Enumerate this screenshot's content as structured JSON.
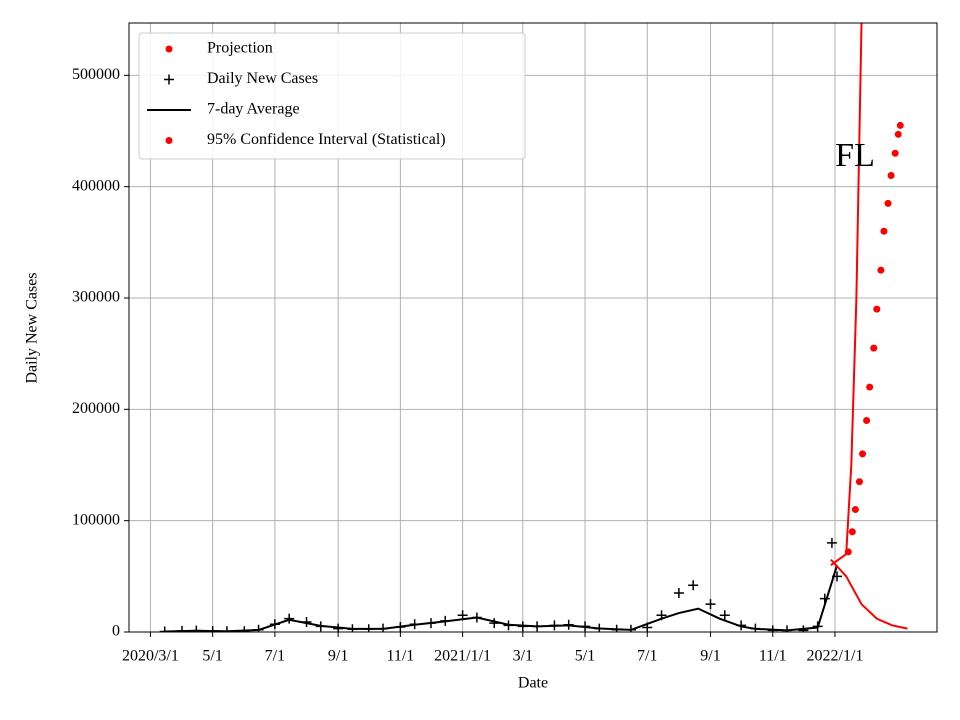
{
  "chart_data": {
    "type": "line",
    "x_label": "Date",
    "y_label": "Daily New Cases",
    "annotation": "FL",
    "xlim": [
      "2020-02-09",
      "2022-04-11"
    ],
    "ylim": [
      0,
      547000
    ],
    "xticks": [
      {
        "value": "2020-03-01",
        "label": "2020/3/1"
      },
      {
        "value": "2020-05-01",
        "label": "5/1"
      },
      {
        "value": "2020-07-01",
        "label": "7/1"
      },
      {
        "value": "2020-09-01",
        "label": "9/1"
      },
      {
        "value": "2020-11-01",
        "label": "11/1"
      },
      {
        "value": "2021-01-01",
        "label": "2021/1/1"
      },
      {
        "value": "2021-03-01",
        "label": "3/1"
      },
      {
        "value": "2021-05-01",
        "label": "5/1"
      },
      {
        "value": "2021-07-01",
        "label": "7/1"
      },
      {
        "value": "2021-09-01",
        "label": "9/1"
      },
      {
        "value": "2021-11-01",
        "label": "11/1"
      },
      {
        "value": "2022-01-01",
        "label": "2022/1/1"
      }
    ],
    "yticks": [
      0,
      100000,
      200000,
      300000,
      400000,
      500000
    ],
    "grid": true,
    "legend": "upper left",
    "series": [
      {
        "name": "Projection",
        "color": "#ff0000",
        "style": "line",
        "legend_marker": "dot",
        "x": [
          "2021-12-28",
          "2022-01-12",
          "2022-01-17",
          "2022-01-22",
          "2022-01-27"
        ],
        "values": [
          60000,
          70000,
          150000,
          300000,
          547000
        ]
      },
      {
        "name": "Daily New Cases",
        "color": "#000000",
        "style": "plus",
        "legend_marker": "plus",
        "x": [
          "2020-03-15",
          "2020-04-01",
          "2020-04-15",
          "2020-05-01",
          "2020-05-15",
          "2020-06-01",
          "2020-06-15",
          "2020-07-01",
          "2020-07-15",
          "2020-08-01",
          "2020-08-15",
          "2020-09-01",
          "2020-09-15",
          "2020-10-01",
          "2020-10-15",
          "2020-11-01",
          "2020-11-15",
          "2020-12-01",
          "2020-12-15",
          "2021-01-01",
          "2021-01-15",
          "2021-02-01",
          "2021-02-15",
          "2021-03-01",
          "2021-03-15",
          "2021-04-01",
          "2021-04-15",
          "2021-05-01",
          "2021-05-15",
          "2021-06-01",
          "2021-06-15",
          "2021-07-01",
          "2021-07-15",
          "2021-08-01",
          "2021-08-15",
          "2021-09-01",
          "2021-09-15",
          "2021-10-01",
          "2021-10-15",
          "2021-11-01",
          "2021-11-15",
          "2021-12-01",
          "2021-12-15",
          "2021-12-22",
          "2021-12-29",
          "2022-01-03"
        ],
        "values": [
          500,
          1000,
          1200,
          800,
          700,
          700,
          2000,
          7000,
          12000,
          9000,
          5000,
          3000,
          2500,
          2500,
          3000,
          4500,
          7000,
          8000,
          10000,
          15000,
          13000,
          8000,
          6000,
          5000,
          5000,
          6000,
          6500,
          5000,
          3000,
          2000,
          2000,
          4000,
          15000,
          35000,
          42000,
          25000,
          15000,
          6000,
          3000,
          1500,
          1500,
          1500,
          5000,
          30000,
          80000,
          50000
        ]
      },
      {
        "name": "7-day Average",
        "color": "#000000",
        "style": "line",
        "legend_marker": "line",
        "x": [
          "2020-03-15",
          "2020-04-15",
          "2020-05-15",
          "2020-06-15",
          "2020-07-15",
          "2020-08-15",
          "2020-09-15",
          "2020-10-15",
          "2020-11-15",
          "2020-12-15",
          "2021-01-15",
          "2021-02-15",
          "2021-03-15",
          "2021-04-15",
          "2021-05-15",
          "2021-06-15",
          "2021-07-15",
          "2021-08-01",
          "2021-08-20",
          "2021-09-10",
          "2021-10-01",
          "2021-10-15",
          "2021-11-15",
          "2021-12-15",
          "2021-12-29",
          "2022-01-03"
        ],
        "values": [
          400,
          1100,
          700,
          1800,
          11000,
          5500,
          2800,
          2800,
          6500,
          9500,
          13000,
          6500,
          5000,
          6000,
          3200,
          1900,
          12000,
          17000,
          21000,
          12000,
          5000,
          2800,
          1500,
          4000,
          45000,
          60000
        ]
      },
      {
        "name": "95% Confidence Interval (Statistical)",
        "color": "#ff0000",
        "style": "dot",
        "legend_marker": "dot",
        "x": [
          "2022-01-14",
          "2022-01-18",
          "2022-01-21",
          "2022-01-25",
          "2022-01-28",
          "2022-02-01",
          "2022-02-04",
          "2022-02-08",
          "2022-02-11",
          "2022-02-15",
          "2022-02-18",
          "2022-02-22",
          "2022-02-25",
          "2022-03-01",
          "2022-03-04",
          "2022-03-06"
        ],
        "values": [
          72000,
          90000,
          110000,
          135000,
          160000,
          190000,
          220000,
          255000,
          290000,
          325000,
          360000,
          385000,
          410000,
          430000,
          447000,
          455000
        ],
        "lower_x": [
          "2021-12-28",
          "2022-01-12",
          "2022-01-27",
          "2022-02-11",
          "2022-02-26",
          "2022-03-13"
        ],
        "lower_values": [
          65000,
          50000,
          25000,
          12000,
          6000,
          3000
        ]
      }
    ]
  }
}
